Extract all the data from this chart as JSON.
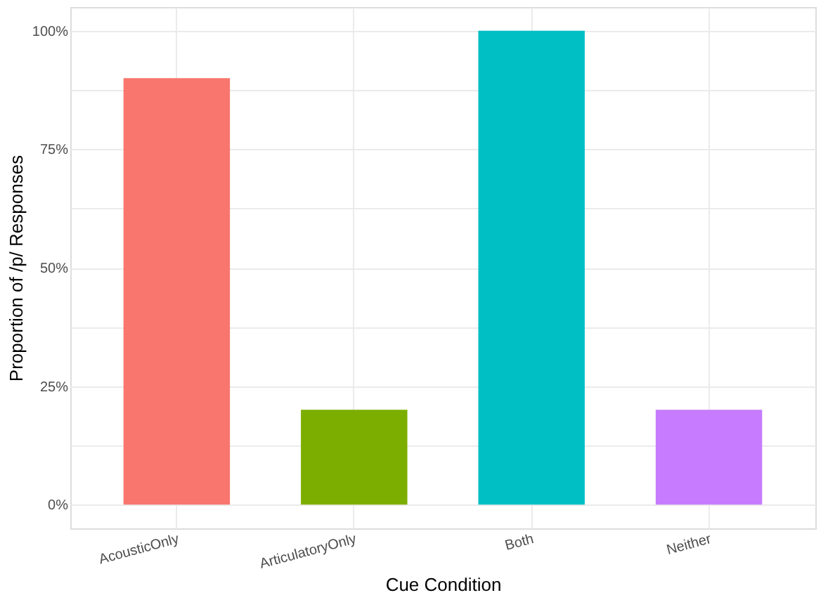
{
  "chart_data": {
    "type": "bar",
    "xlabel": "Cue Condition",
    "ylabel": "Proportion of /p/ Responses",
    "categories": [
      "AcousticOnly",
      "ArticulatoryOnly",
      "Both",
      "Neither"
    ],
    "values": [
      90,
      20,
      100,
      20
    ],
    "colors": [
      "#f8766d",
      "#7cae00",
      "#00bfc4",
      "#c77cff"
    ],
    "ylim": [
      -5,
      105
    ],
    "yticks": [
      {
        "value": 0,
        "label": "0%"
      },
      {
        "value": 12.5,
        "label": null
      },
      {
        "value": 25,
        "label": "25%"
      },
      {
        "value": 37.5,
        "label": null
      },
      {
        "value": 50,
        "label": "50%"
      },
      {
        "value": 62.5,
        "label": null
      },
      {
        "value": 75,
        "label": "75%"
      },
      {
        "value": 87.5,
        "label": null
      },
      {
        "value": 100,
        "label": "100%"
      }
    ],
    "grid": true
  }
}
